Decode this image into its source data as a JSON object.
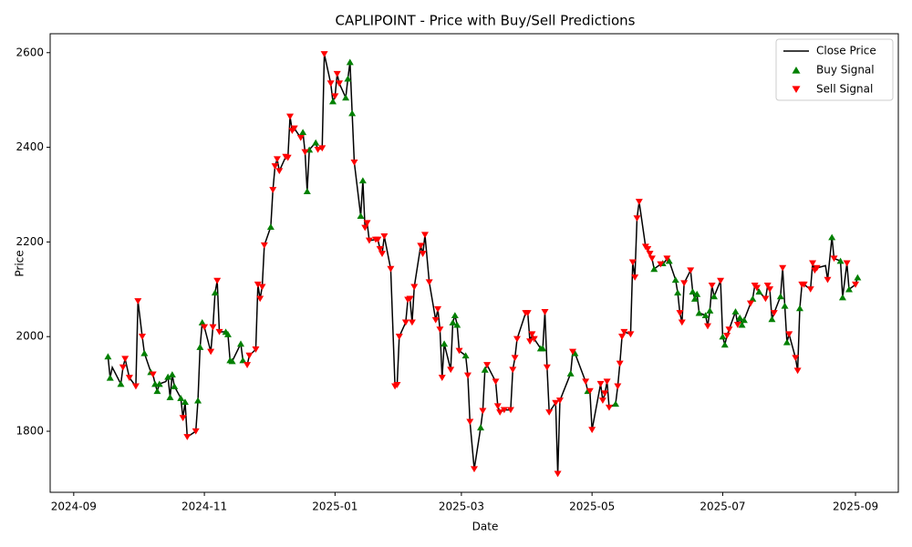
{
  "chart_data": {
    "type": "line",
    "title": "CAPLIPOINT - Price with Buy/Sell Predictions",
    "xlabel": "Date",
    "ylabel": "Price",
    "xlim": [
      "2024-08-21",
      "2025-09-21"
    ],
    "xticks": [
      {
        "value": "2024-09-01",
        "label": "2024-09"
      },
      {
        "value": "2024-11-01",
        "label": "2024-11"
      },
      {
        "value": "2025-01-01",
        "label": "2025-01"
      },
      {
        "value": "2025-03-01",
        "label": "2025-03"
      },
      {
        "value": "2025-05-01",
        "label": "2025-05"
      },
      {
        "value": "2025-07-01",
        "label": "2025-07"
      },
      {
        "value": "2025-09-01",
        "label": "2025-09"
      }
    ],
    "ylim": [
      1671,
      2640
    ],
    "yticks": [
      1800,
      2000,
      2200,
      2400,
      2600
    ],
    "legend": "upper right",
    "series": [
      {
        "name": "Close Price",
        "type": "line",
        "color": "#000000",
        "x": [
          "2024-09-17",
          "2024-09-18",
          "2024-09-19",
          "2024-09-23",
          "2024-09-24",
          "2024-09-25",
          "2024-09-27",
          "2024-09-30",
          "2024-10-01",
          "2024-10-03",
          "2024-10-04",
          "2024-10-07",
          "2024-10-08",
          "2024-10-09",
          "2024-10-10",
          "2024-10-11",
          "2024-10-14",
          "2024-10-15",
          "2024-10-16",
          "2024-10-17",
          "2024-10-18",
          "2024-10-21",
          "2024-10-22",
          "2024-10-23",
          "2024-10-24",
          "2024-10-28",
          "2024-10-29",
          "2024-10-30",
          "2024-10-31",
          "2024-11-01",
          "2024-11-04",
          "2024-11-05",
          "2024-11-06",
          "2024-11-07",
          "2024-11-08",
          "2024-11-11",
          "2024-11-12",
          "2024-11-13",
          "2024-11-14",
          "2024-11-18",
          "2024-11-19",
          "2024-11-21",
          "2024-11-22",
          "2024-11-25",
          "2024-11-26",
          "2024-11-27",
          "2024-11-28",
          "2024-11-29",
          "2024-12-02",
          "2024-12-03",
          "2024-12-04",
          "2024-12-05",
          "2024-12-06",
          "2024-12-09",
          "2024-12-10",
          "2024-12-11",
          "2024-12-12",
          "2024-12-13",
          "2024-12-16",
          "2024-12-17",
          "2024-12-18",
          "2024-12-19",
          "2024-12-20",
          "2024-12-23",
          "2024-12-24",
          "2024-12-26",
          "2024-12-27",
          "2024-12-30",
          "2024-12-31",
          "2025-01-01",
          "2025-01-02",
          "2025-01-03",
          "2025-01-06",
          "2025-01-07",
          "2025-01-08",
          "2025-01-09",
          "2025-01-10",
          "2025-01-13",
          "2025-01-14",
          "2025-01-15",
          "2025-01-16",
          "2025-01-17",
          "2025-01-20",
          "2025-01-21",
          "2025-01-22",
          "2025-01-23",
          "2025-01-24",
          "2025-01-27",
          "2025-01-29",
          "2025-01-30",
          "2025-01-31",
          "2025-02-03",
          "2025-02-04",
          "2025-02-05",
          "2025-02-06",
          "2025-02-07",
          "2025-02-10",
          "2025-02-11",
          "2025-02-12",
          "2025-02-14",
          "2025-02-17",
          "2025-02-18",
          "2025-02-19",
          "2025-02-20",
          "2025-02-21",
          "2025-02-24",
          "2025-02-25",
          "2025-02-26",
          "2025-02-27",
          "2025-02-28",
          "2025-03-03",
          "2025-03-04",
          "2025-03-05",
          "2025-03-07",
          "2025-03-10",
          "2025-03-11",
          "2025-03-12",
          "2025-03-13",
          "2025-03-17",
          "2025-03-18",
          "2025-03-19",
          "2025-03-21",
          "2025-03-24",
          "2025-03-25",
          "2025-03-26",
          "2025-03-27",
          "2025-03-31",
          "2025-04-01",
          "2025-04-02",
          "2025-04-03",
          "2025-04-04",
          "2025-04-07",
          "2025-04-08",
          "2025-04-09",
          "2025-04-10",
          "2025-04-11",
          "2025-04-14",
          "2025-04-15",
          "2025-04-16",
          "2025-04-21",
          "2025-04-22",
          "2025-04-23",
          "2025-04-28",
          "2025-04-29",
          "2025-04-30",
          "2025-05-01",
          "2025-05-05",
          "2025-05-06",
          "2025-05-07",
          "2025-05-08",
          "2025-05-09",
          "2025-05-12",
          "2025-05-13",
          "2025-05-14",
          "2025-05-15",
          "2025-05-16",
          "2025-05-19",
          "2025-05-20",
          "2025-05-21",
          "2025-05-22",
          "2025-05-23",
          "2025-05-26",
          "2025-05-27",
          "2025-05-28",
          "2025-05-29",
          "2025-05-30",
          "2025-06-02",
          "2025-06-03",
          "2025-06-04",
          "2025-06-05",
          "2025-06-06",
          "2025-06-09",
          "2025-06-10",
          "2025-06-11",
          "2025-06-12",
          "2025-06-13",
          "2025-06-16",
          "2025-06-17",
          "2025-06-18",
          "2025-06-19",
          "2025-06-20",
          "2025-06-23",
          "2025-06-24",
          "2025-06-25",
          "2025-06-26",
          "2025-06-27",
          "2025-06-30",
          "2025-07-01",
          "2025-07-02",
          "2025-07-03",
          "2025-07-04",
          "2025-07-07",
          "2025-07-08",
          "2025-07-09",
          "2025-07-10",
          "2025-07-11",
          "2025-07-14",
          "2025-07-15",
          "2025-07-16",
          "2025-07-17",
          "2025-07-18",
          "2025-07-21",
          "2025-07-22",
          "2025-07-23",
          "2025-07-24",
          "2025-07-25",
          "2025-07-28",
          "2025-07-29",
          "2025-07-30",
          "2025-07-31",
          "2025-08-01",
          "2025-08-04",
          "2025-08-05",
          "2025-08-06",
          "2025-08-07",
          "2025-08-08",
          "2025-08-11",
          "2025-08-12",
          "2025-08-13",
          "2025-08-14",
          "2025-08-18",
          "2025-08-19",
          "2025-08-21",
          "2025-08-22",
          "2025-08-25",
          "2025-08-26",
          "2025-08-28",
          "2025-08-29",
          "2025-09-01",
          "2025-09-02"
        ],
        "values": [
          1958,
          1913,
          1935,
          1900,
          1935,
          1953,
          1913,
          1895,
          2075,
          2000,
          1965,
          1925,
          1920,
          1900,
          1885,
          1900,
          1905,
          1915,
          1872,
          1920,
          1895,
          1870,
          1828,
          1862,
          1788,
          1800,
          1865,
          1978,
          2030,
          2020,
          1968,
          2020,
          2093,
          2118,
          2010,
          2010,
          2005,
          1950,
          1948,
          1985,
          1950,
          1940,
          1960,
          1973,
          2110,
          2080,
          2105,
          2193,
          2232,
          2310,
          2360,
          2375,
          2350,
          2380,
          2378,
          2465,
          2435,
          2440,
          2420,
          2432,
          2390,
          2307,
          2395,
          2410,
          2395,
          2398,
          2597,
          2535,
          2497,
          2508,
          2555,
          2535,
          2505,
          2545,
          2580,
          2472,
          2368,
          2255,
          2330,
          2230,
          2240,
          2203,
          2205,
          2205,
          2185,
          2175,
          2212,
          2143,
          1895,
          1898,
          2000,
          2030,
          2078,
          2080,
          2030,
          2105,
          2192,
          2175,
          2215,
          2115,
          2035,
          2058,
          2015,
          1913,
          1985,
          1930,
          2030,
          2045,
          2025,
          1970,
          1960,
          1918,
          1820,
          1720,
          1808,
          1843,
          1930,
          1940,
          1905,
          1853,
          1840,
          1845,
          1845,
          1930,
          1955,
          1995,
          2050,
          2050,
          1990,
          2005,
          1995,
          1975,
          1975,
          2052,
          1935,
          1840,
          1860,
          1710,
          1865,
          1922,
          1968,
          1965,
          1905,
          1885,
          1885,
          1803,
          1900,
          1865,
          1880,
          1905,
          1850,
          1858,
          1895,
          1943,
          2000,
          2010,
          2005,
          2157,
          2125,
          2250,
          2285,
          2190,
          2185,
          2175,
          2165,
          2143,
          2153,
          2155,
          2158,
          2165,
          2160,
          2120,
          2093,
          2050,
          2030,
          2113,
          2140,
          2095,
          2080,
          2090,
          2050,
          2045,
          2022,
          2055,
          2108,
          2085,
          2118,
          2000,
          1983,
          2002,
          2015,
          2053,
          2025,
          2040,
          2025,
          2035,
          2070,
          2080,
          2108,
          2103,
          2095,
          2080,
          2108,
          2100,
          2037,
          2050,
          2085,
          2145,
          2065,
          1988,
          2005,
          1955,
          1928,
          2060,
          2110,
          2110,
          2100,
          2155,
          2140,
          2145,
          2150,
          2120,
          2210,
          2165,
          2160,
          2083,
          2155,
          2100,
          2110,
          2125
        ]
      },
      {
        "name": "Buy Signal",
        "type": "scatter",
        "marker": "^",
        "color": "#008000",
        "x": [
          "2024-09-17",
          "2024-09-18",
          "2024-09-23",
          "2024-10-04",
          "2024-10-07",
          "2024-10-09",
          "2024-10-10",
          "2024-10-11",
          "2024-10-15",
          "2024-10-16",
          "2024-10-17",
          "2024-10-18",
          "2024-10-21",
          "2024-10-23",
          "2024-10-29",
          "2024-10-30",
          "2024-10-31",
          "2024-11-06",
          "2024-11-11",
          "2024-11-12",
          "2024-11-13",
          "2024-11-14",
          "2024-11-18",
          "2024-11-19",
          "2024-12-02",
          "2024-12-17",
          "2024-12-19",
          "2024-12-20",
          "2024-12-23",
          "2024-12-31",
          "2025-01-06",
          "2025-01-07",
          "2025-01-08",
          "2025-01-09",
          "2025-01-13",
          "2025-01-14",
          "2025-02-21",
          "2025-02-25",
          "2025-02-26",
          "2025-02-27",
          "2025-03-03",
          "2025-03-10",
          "2025-03-12",
          "2025-04-07",
          "2025-04-08",
          "2025-04-21",
          "2025-04-23",
          "2025-04-29",
          "2025-05-12",
          "2025-05-30",
          "2025-06-03",
          "2025-06-06",
          "2025-06-09",
          "2025-06-10",
          "2025-06-17",
          "2025-06-18",
          "2025-06-19",
          "2025-06-20",
          "2025-06-23",
          "2025-06-25",
          "2025-06-27",
          "2025-07-01",
          "2025-07-02",
          "2025-07-07",
          "2025-07-09",
          "2025-07-10",
          "2025-07-11",
          "2025-07-15",
          "2025-07-18",
          "2025-07-24",
          "2025-07-28",
          "2025-07-30",
          "2025-07-31",
          "2025-08-06",
          "2025-08-21",
          "2025-08-25",
          "2025-08-26",
          "2025-08-29",
          "2025-09-02"
        ],
        "values": [
          1958,
          1913,
          1900,
          1965,
          1925,
          1900,
          1885,
          1900,
          1915,
          1872,
          1920,
          1895,
          1870,
          1862,
          1865,
          1978,
          2030,
          2093,
          2010,
          2005,
          1950,
          1948,
          1985,
          1950,
          2232,
          2432,
          2307,
          2395,
          2410,
          2497,
          2505,
          2545,
          2580,
          2472,
          2255,
          2330,
          1985,
          2030,
          2045,
          2025,
          1960,
          1808,
          1930,
          1975,
          1975,
          1922,
          1965,
          1885,
          1858,
          2143,
          2155,
          2160,
          2120,
          2093,
          2095,
          2080,
          2090,
          2050,
          2045,
          2055,
          2085,
          2000,
          1983,
          2053,
          2040,
          2025,
          2035,
          2080,
          2095,
          2037,
          2085,
          2065,
          1988,
          2060,
          2210,
          2160,
          2083,
          2100,
          2125
        ]
      },
      {
        "name": "Sell Signal",
        "type": "scatter",
        "marker": "v",
        "color": "#ff0000",
        "x": [
          "2024-09-24",
          "2024-09-25",
          "2024-09-27",
          "2024-09-30",
          "2024-10-01",
          "2024-10-03",
          "2024-10-08",
          "2024-10-22",
          "2024-10-24",
          "2024-10-28",
          "2024-11-01",
          "2024-11-04",
          "2024-11-05",
          "2024-11-07",
          "2024-11-08",
          "2024-11-21",
          "2024-11-22",
          "2024-11-25",
          "2024-11-26",
          "2024-11-27",
          "2024-11-28",
          "2024-11-29",
          "2024-12-03",
          "2024-12-04",
          "2024-12-05",
          "2024-12-06",
          "2024-12-09",
          "2024-12-10",
          "2024-12-11",
          "2024-12-12",
          "2024-12-13",
          "2024-12-16",
          "2024-12-18",
          "2024-12-24",
          "2024-12-26",
          "2024-12-27",
          "2024-12-30",
          "2025-01-01",
          "2025-01-02",
          "2025-01-03",
          "2025-01-10",
          "2025-01-15",
          "2025-01-16",
          "2025-01-17",
          "2025-01-20",
          "2025-01-21",
          "2025-01-22",
          "2025-01-23",
          "2025-01-24",
          "2025-01-27",
          "2025-01-29",
          "2025-01-30",
          "2025-01-31",
          "2025-02-03",
          "2025-02-04",
          "2025-02-05",
          "2025-02-06",
          "2025-02-07",
          "2025-02-10",
          "2025-02-11",
          "2025-02-12",
          "2025-02-14",
          "2025-02-17",
          "2025-02-18",
          "2025-02-19",
          "2025-02-20",
          "2025-02-24",
          "2025-02-28",
          "2025-03-04",
          "2025-03-05",
          "2025-03-07",
          "2025-03-11",
          "2025-03-13",
          "2025-03-17",
          "2025-03-18",
          "2025-03-19",
          "2025-03-21",
          "2025-03-24",
          "2025-03-25",
          "2025-03-26",
          "2025-03-27",
          "2025-03-31",
          "2025-04-01",
          "2025-04-02",
          "2025-04-03",
          "2025-04-04",
          "2025-04-09",
          "2025-04-10",
          "2025-04-11",
          "2025-04-14",
          "2025-04-15",
          "2025-04-16",
          "2025-04-22",
          "2025-04-28",
          "2025-04-30",
          "2025-05-01",
          "2025-05-05",
          "2025-05-06",
          "2025-05-07",
          "2025-05-08",
          "2025-05-09",
          "2025-05-13",
          "2025-05-14",
          "2025-05-15",
          "2025-05-16",
          "2025-05-19",
          "2025-05-20",
          "2025-05-21",
          "2025-05-22",
          "2025-05-23",
          "2025-05-26",
          "2025-05-27",
          "2025-05-28",
          "2025-05-29",
          "2025-06-02",
          "2025-06-05",
          "2025-06-11",
          "2025-06-12",
          "2025-06-13",
          "2025-06-16",
          "2025-06-24",
          "2025-06-26",
          "2025-06-30",
          "2025-07-03",
          "2025-07-04",
          "2025-07-08",
          "2025-07-14",
          "2025-07-16",
          "2025-07-17",
          "2025-07-21",
          "2025-07-22",
          "2025-07-23",
          "2025-07-25",
          "2025-07-29",
          "2025-08-01",
          "2025-08-04",
          "2025-08-05",
          "2025-08-07",
          "2025-08-08",
          "2025-08-11",
          "2025-08-12",
          "2025-08-13",
          "2025-08-14",
          "2025-08-19",
          "2025-08-22",
          "2025-08-28",
          "2025-09-01"
        ],
        "values": [
          1935,
          1953,
          1913,
          1895,
          2075,
          2000,
          1920,
          1828,
          1788,
          1800,
          2020,
          1968,
          2020,
          2118,
          2010,
          1940,
          1960,
          1973,
          2110,
          2080,
          2105,
          2193,
          2310,
          2360,
          2375,
          2350,
          2380,
          2378,
          2465,
          2435,
          2440,
          2420,
          2390,
          2395,
          2398,
          2597,
          2535,
          2508,
          2555,
          2535,
          2368,
          2230,
          2240,
          2203,
          2205,
          2205,
          2185,
          2175,
          2212,
          2143,
          1895,
          1898,
          2000,
          2030,
          2078,
          2080,
          2030,
          2105,
          2192,
          2175,
          2215,
          2115,
          2035,
          2058,
          2015,
          1913,
          1930,
          1970,
          1918,
          1820,
          1720,
          1843,
          1940,
          1905,
          1853,
          1840,
          1845,
          1845,
          1930,
          1955,
          1995,
          2050,
          2050,
          1990,
          2005,
          1995,
          2052,
          1935,
          1840,
          1860,
          1710,
          1865,
          1968,
          1905,
          1885,
          1803,
          1900,
          1865,
          1880,
          1905,
          1850,
          1895,
          1943,
          2000,
          2010,
          2005,
          2157,
          2125,
          2250,
          2285,
          2190,
          2185,
          2175,
          2165,
          2153,
          2165,
          2050,
          2030,
          2113,
          2140,
          2022,
          2108,
          2118,
          2002,
          2015,
          2025,
          2070,
          2108,
          2103,
          2080,
          2108,
          2100,
          2050,
          2145,
          2005,
          1955,
          1928,
          2110,
          2110,
          2100,
          2155,
          2140,
          2145,
          2120,
          2165,
          2155,
          2110
        ]
      }
    ]
  }
}
